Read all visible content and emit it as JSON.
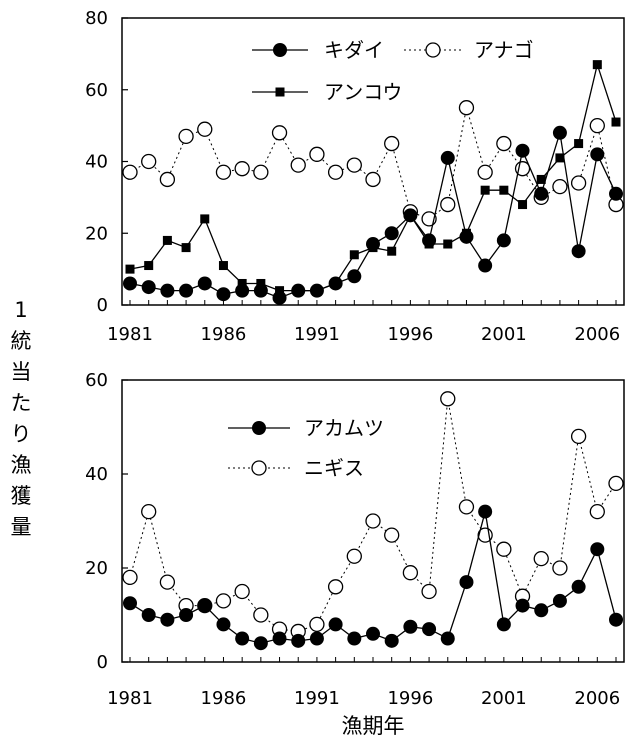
{
  "ylabel_chars": [
    "1",
    "統",
    "当",
    "た",
    "り",
    "漁",
    "獲",
    "量"
  ],
  "xlabel": "漁期年",
  "chart_data": [
    {
      "type": "line",
      "x_ticks": [
        "1981",
        "1986",
        "1991",
        "1996",
        "2001",
        "2006"
      ],
      "y_ticks": [
        "0",
        "20",
        "40",
        "60",
        "80"
      ],
      "ylim": [
        0,
        80
      ],
      "xlim": [
        1981,
        2007
      ],
      "legend": "top",
      "grid": false,
      "series": [
        {
          "name": "キダイ",
          "marker": "filled-circle",
          "line": "solid",
          "x": [
            1981,
            1982,
            1983,
            1984,
            1985,
            1986,
            1987,
            1988,
            1989,
            1990,
            1991,
            1992,
            1993,
            1994,
            1995,
            1996,
            1997,
            1998,
            1999,
            2000,
            2001,
            2002,
            2003,
            2004,
            2005,
            2006,
            2007
          ],
          "values": [
            6,
            5,
            4,
            4,
            6,
            3,
            4,
            4,
            2,
            4,
            4,
            6,
            8,
            17,
            20,
            25,
            18,
            41,
            19,
            11,
            18,
            43,
            31,
            48,
            15,
            42,
            31
          ]
        },
        {
          "name": "アナゴ",
          "marker": "open-circle",
          "line": "dotted",
          "x": [
            1981,
            1982,
            1983,
            1984,
            1985,
            1986,
            1987,
            1988,
            1989,
            1990,
            1991,
            1992,
            1993,
            1994,
            1995,
            1996,
            1997,
            1998,
            1999,
            2000,
            2001,
            2002,
            2003,
            2004,
            2005,
            2006,
            2007
          ],
          "values": [
            37,
            40,
            35,
            47,
            49,
            37,
            38,
            37,
            48,
            39,
            42,
            37,
            39,
            35,
            45,
            26,
            24,
            28,
            55,
            37,
            45,
            38,
            30,
            33,
            34,
            50,
            28
          ]
        },
        {
          "name": "アンコウ",
          "marker": "filled-square",
          "line": "solid",
          "x": [
            1981,
            1982,
            1983,
            1984,
            1985,
            1986,
            1987,
            1988,
            1989,
            1990,
            1991,
            1992,
            1993,
            1994,
            1995,
            1996,
            1997,
            1998,
            1999,
            2000,
            2001,
            2002,
            2003,
            2004,
            2005,
            2006,
            2007
          ],
          "values": [
            10,
            11,
            18,
            16,
            24,
            11,
            6,
            6,
            4,
            4,
            4,
            6,
            14,
            16,
            15,
            25,
            17,
            17,
            20,
            32,
            32,
            28,
            35,
            41,
            45,
            67,
            51
          ]
        }
      ]
    },
    {
      "type": "line",
      "x_ticks": [
        "1981",
        "1986",
        "1991",
        "1996",
        "2001",
        "2006"
      ],
      "y_ticks": [
        "0",
        "20",
        "40",
        "60"
      ],
      "ylim": [
        0,
        60
      ],
      "xlim": [
        1981,
        2007
      ],
      "legend": "top-left",
      "grid": false,
      "series": [
        {
          "name": "アカムツ",
          "marker": "filled-circle",
          "line": "solid",
          "x": [
            1981,
            1982,
            1983,
            1984,
            1985,
            1986,
            1987,
            1988,
            1989,
            1990,
            1991,
            1992,
            1993,
            1994,
            1995,
            1996,
            1997,
            1998,
            1999,
            2000,
            2001,
            2002,
            2003,
            2004,
            2005,
            2006,
            2007
          ],
          "values": [
            12.5,
            10,
            9,
            10,
            12,
            8,
            5,
            4,
            5,
            4.5,
            5,
            8,
            5,
            6,
            4.5,
            7.5,
            7,
            5,
            17,
            32,
            8,
            12,
            11,
            13,
            16,
            24,
            9
          ]
        },
        {
          "name": "ニギス",
          "marker": "open-circle",
          "line": "dotted",
          "x": [
            1981,
            1982,
            1983,
            1984,
            1985,
            1986,
            1987,
            1988,
            1989,
            1990,
            1991,
            1992,
            1993,
            1994,
            1995,
            1996,
            1997,
            1998,
            1999,
            2000,
            2001,
            2002,
            2003,
            2004,
            2005,
            2006,
            2007
          ],
          "values": [
            18,
            32,
            17,
            12,
            12,
            13,
            15,
            10,
            7,
            6.5,
            8,
            16,
            22.5,
            30,
            27,
            19,
            15,
            56,
            33,
            27,
            24,
            14,
            22,
            20,
            48,
            32,
            38
          ]
        }
      ]
    }
  ]
}
